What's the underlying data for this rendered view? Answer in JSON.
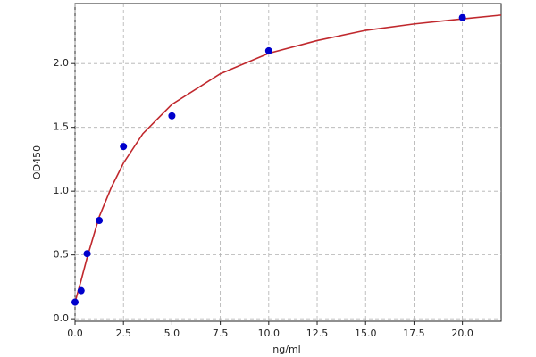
{
  "chart_data": {
    "type": "scatter",
    "x_label": "ng/ml",
    "y_label": "OD450",
    "x": [
      0,
      0.3125,
      0.625,
      1.25,
      2.5,
      5,
      10,
      20
    ],
    "values": [
      0.13,
      0.22,
      0.51,
      0.77,
      1.35,
      1.59,
      2.1,
      2.36
    ],
    "color": "#0000cc",
    "fit": {
      "color": "#c0282d",
      "x": [
        0,
        0.3125,
        0.625,
        1.25,
        1.875,
        2.5,
        3.5,
        5,
        7.5,
        10,
        12.5,
        15,
        17.5,
        20,
        22
      ],
      "values": [
        0.13,
        0.3,
        0.48,
        0.8,
        1.03,
        1.22,
        1.45,
        1.68,
        1.92,
        2.08,
        2.18,
        2.26,
        2.31,
        2.35,
        2.38
      ]
    },
    "xlim": [
      0,
      22
    ],
    "ylim": [
      -0.02,
      2.47
    ],
    "xticks": [
      {
        "value": 0,
        "label": "0.0"
      },
      2.5,
      {
        "value": 5,
        "label": "5.0"
      },
      7.5,
      {
        "value": 10,
        "label": "10.0"
      },
      12.5,
      {
        "value": 15,
        "label": "15.0"
      },
      17.5,
      {
        "value": 20,
        "label": "20.0"
      }
    ],
    "yticks": [
      {
        "value": 0,
        "label": "0.0"
      },
      0.5,
      {
        "value": 1,
        "label": "1.0"
      },
      1.5,
      {
        "value": 2,
        "label": "2.0"
      }
    ],
    "grid": true
  }
}
